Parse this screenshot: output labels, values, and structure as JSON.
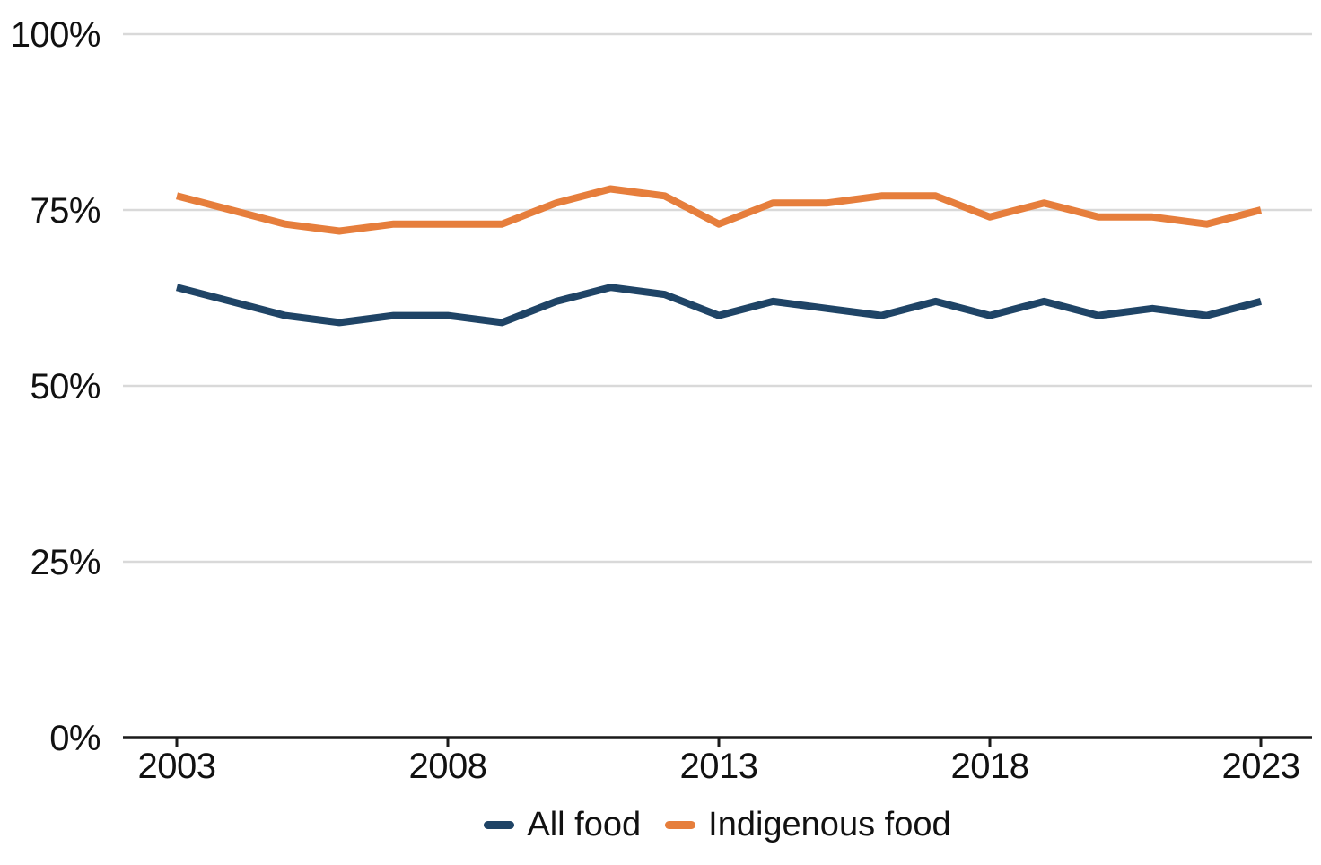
{
  "chart_data": {
    "type": "line",
    "x": [
      2003,
      2004,
      2005,
      2006,
      2007,
      2008,
      2009,
      2010,
      2011,
      2012,
      2013,
      2014,
      2015,
      2016,
      2017,
      2018,
      2019,
      2020,
      2021,
      2022,
      2023
    ],
    "series": [
      {
        "name": "All food",
        "color": "#1f4466",
        "values": [
          64,
          62,
          60,
          59,
          60,
          60,
          59,
          62,
          64,
          63,
          60,
          62,
          61,
          60,
          62,
          60,
          62,
          60,
          61,
          60,
          62
        ]
      },
      {
        "name": "Indigenous food",
        "color": "#e67e3c",
        "values": [
          77,
          75,
          73,
          72,
          73,
          73,
          73,
          76,
          78,
          77,
          73,
          76,
          76,
          77,
          77,
          74,
          76,
          74,
          74,
          73,
          75
        ]
      }
    ],
    "title": "",
    "xlabel": "",
    "ylabel": "",
    "ylim": [
      0,
      100
    ],
    "yticks": [
      0,
      25,
      50,
      75,
      100
    ],
    "ytick_labels": [
      "0%",
      "25%",
      "50%",
      "75%",
      "100%"
    ],
    "xtick_years": [
      2003,
      2008,
      2013,
      2018,
      2023
    ],
    "grid": true,
    "legend_position": "bottom",
    "colors": {
      "gridline": "#d9d9d9",
      "axis": "#1a1a1a",
      "text": "#111111"
    }
  }
}
